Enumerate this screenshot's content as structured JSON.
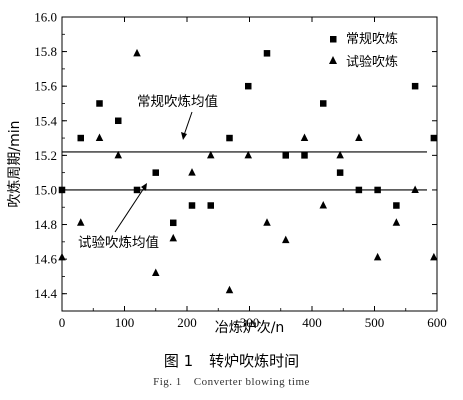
{
  "chart_data": {
    "type": "scatter",
    "xlabel": "冶炼炉次/n",
    "ylabel": "吹炼周期/min",
    "xlim": [
      0,
      600
    ],
    "ylim": [
      14.3,
      16.0
    ],
    "x_ticks": [
      "0",
      "100",
      "200",
      "300",
      "400",
      "500",
      "600"
    ],
    "y_ticks": [
      "14.4",
      "14.6",
      "14.8",
      "15.0",
      "15.2",
      "15.4",
      "15.6",
      "15.8",
      "16.0"
    ],
    "legend_position": "top-right",
    "series": [
      {
        "name": "常规吹炼",
        "marker": "square",
        "points": [
          [
            0,
            15.0
          ],
          [
            30,
            15.3
          ],
          [
            60,
            15.5
          ],
          [
            90,
            15.4
          ],
          [
            120,
            15.0
          ],
          [
            150,
            15.1
          ],
          [
            178,
            14.81
          ],
          [
            208,
            14.91
          ],
          [
            238,
            14.91
          ],
          [
            268,
            15.3
          ],
          [
            298,
            15.6
          ],
          [
            328,
            15.79
          ],
          [
            358,
            15.2
          ],
          [
            388,
            15.2
          ],
          [
            418,
            15.5
          ],
          [
            445,
            15.1
          ],
          [
            475,
            15.0
          ],
          [
            505,
            15.0
          ],
          [
            535,
            14.91
          ],
          [
            565,
            15.6
          ],
          [
            595,
            15.3
          ]
        ]
      },
      {
        "name": "试验吹炼",
        "marker": "triangle",
        "points": [
          [
            0,
            14.61
          ],
          [
            30,
            14.81
          ],
          [
            60,
            15.3
          ],
          [
            90,
            15.2
          ],
          [
            120,
            15.79
          ],
          [
            150,
            14.52
          ],
          [
            178,
            14.72
          ],
          [
            208,
            15.1
          ],
          [
            238,
            15.2
          ],
          [
            268,
            14.42
          ],
          [
            298,
            15.2
          ],
          [
            328,
            14.81
          ],
          [
            358,
            14.71
          ],
          [
            388,
            15.3
          ],
          [
            418,
            14.91
          ],
          [
            445,
            15.2
          ],
          [
            475,
            15.3
          ],
          [
            505,
            14.61
          ],
          [
            535,
            14.81
          ],
          [
            565,
            15.0
          ],
          [
            595,
            14.61
          ]
        ]
      }
    ],
    "reference_lines": [
      {
        "name": "常规吹炼均值",
        "y": 15.22
      },
      {
        "name": "试验吹炼均值",
        "y": 15.0
      }
    ],
    "annotations": {
      "conventional_mean": "常规吹炼均值",
      "trial_mean": "试验吹炼均值"
    }
  },
  "caption": {
    "cn_label": "图 1",
    "cn_title": "转炉吹炼时间",
    "en_label": "Fig. 1",
    "en_title": "Converter blowing time"
  }
}
